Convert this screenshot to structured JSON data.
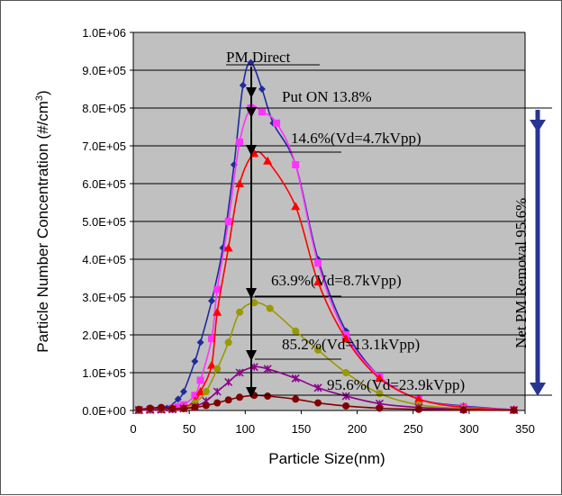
{
  "chart_data": {
    "type": "line",
    "xlabel": "Particle Size(nm)",
    "ylabel_main": "Particle Number Concentration (#/cm",
    "ylabel_sup": "3",
    "ylabel_close": ")",
    "xlim": [
      0,
      350
    ],
    "ylim": [
      0,
      1000000
    ],
    "x_ticks": [
      0,
      50,
      100,
      150,
      200,
      250,
      300,
      350
    ],
    "y_ticks": [
      0,
      100000,
      200000,
      300000,
      400000,
      500000,
      600000,
      700000,
      800000,
      900000,
      1000000
    ],
    "y_tick_labels": [
      "0.0E+00",
      "1.0E+05",
      "2.0E+05",
      "3.0E+05",
      "4.0E+05",
      "5.0E+05",
      "6.0E+05",
      "7.0E+05",
      "8.0E+05",
      "9.0E+05",
      "1.0E+06"
    ],
    "x_tick_labels": [
      "0",
      "50",
      "100",
      "150",
      "200",
      "250",
      "300",
      "350"
    ],
    "background_color": "#c0c0c0",
    "grid": "horizontal",
    "series": [
      {
        "name": "PM Direct",
        "color": "#1f2a9e",
        "marker": "diamond",
        "points": [
          [
            5,
            2000
          ],
          [
            15,
            3000
          ],
          [
            25,
            5000
          ],
          [
            30,
            6000
          ],
          [
            40,
            30000
          ],
          [
            45,
            50000
          ],
          [
            55,
            130000
          ],
          [
            60,
            180000
          ],
          [
            70,
            290000
          ],
          [
            80,
            430000
          ],
          [
            90,
            650000
          ],
          [
            98,
            860000
          ],
          [
            105,
            920000
          ],
          [
            115,
            850000
          ],
          [
            125,
            760000
          ],
          [
            145,
            650000
          ],
          [
            165,
            400000
          ],
          [
            190,
            210000
          ],
          [
            220,
            90000
          ],
          [
            255,
            30000
          ],
          [
            295,
            12000
          ],
          [
            340,
            2000
          ]
        ]
      },
      {
        "name": "Put ON",
        "color": "#ff33ff",
        "marker": "square",
        "points": [
          [
            5,
            1000
          ],
          [
            15,
            2000
          ],
          [
            25,
            4000
          ],
          [
            35,
            6000
          ],
          [
            40,
            10000
          ],
          [
            45,
            15000
          ],
          [
            55,
            40000
          ],
          [
            60,
            80000
          ],
          [
            70,
            190000
          ],
          [
            75,
            320000
          ],
          [
            85,
            500000
          ],
          [
            95,
            710000
          ],
          [
            105,
            800000
          ],
          [
            115,
            790000
          ],
          [
            128,
            760000
          ],
          [
            145,
            650000
          ],
          [
            165,
            390000
          ],
          [
            190,
            200000
          ],
          [
            220,
            90000
          ],
          [
            255,
            30000
          ],
          [
            295,
            10000
          ],
          [
            340,
            2000
          ]
        ]
      },
      {
        "name": "Vd=4.7kVpp",
        "color": "#ff0000",
        "marker": "triangle",
        "points": [
          [
            5,
            1000
          ],
          [
            15,
            2000
          ],
          [
            25,
            3000
          ],
          [
            35,
            5000
          ],
          [
            45,
            8000
          ],
          [
            55,
            25000
          ],
          [
            60,
            50000
          ],
          [
            70,
            120000
          ],
          [
            75,
            260000
          ],
          [
            85,
            430000
          ],
          [
            95,
            600000
          ],
          [
            108,
            680000
          ],
          [
            120,
            660000
          ],
          [
            145,
            540000
          ],
          [
            165,
            340000
          ],
          [
            190,
            190000
          ],
          [
            220,
            85000
          ],
          [
            255,
            30000
          ],
          [
            295,
            8000
          ],
          [
            340,
            2000
          ]
        ]
      },
      {
        "name": "Vd=8.7kVpp",
        "color": "#999900",
        "marker": "circle",
        "points": [
          [
            5,
            1000
          ],
          [
            15,
            1500
          ],
          [
            25,
            2000
          ],
          [
            35,
            3000
          ],
          [
            45,
            6000
          ],
          [
            55,
            20000
          ],
          [
            65,
            50000
          ],
          [
            75,
            110000
          ],
          [
            85,
            180000
          ],
          [
            95,
            260000
          ],
          [
            108,
            285000
          ],
          [
            122,
            270000
          ],
          [
            145,
            210000
          ],
          [
            165,
            160000
          ],
          [
            190,
            100000
          ],
          [
            220,
            45000
          ],
          [
            255,
            15000
          ],
          [
            295,
            5000
          ],
          [
            340,
            1000
          ]
        ]
      },
      {
        "name": "Vd=13.1kVpp",
        "color": "#8b008b",
        "marker": "star",
        "points": [
          [
            5,
            1000
          ],
          [
            15,
            1500
          ],
          [
            25,
            2000
          ],
          [
            35,
            3000
          ],
          [
            45,
            5000
          ],
          [
            55,
            10000
          ],
          [
            65,
            25000
          ],
          [
            75,
            50000
          ],
          [
            85,
            75000
          ],
          [
            95,
            100000
          ],
          [
            108,
            115000
          ],
          [
            120,
            110000
          ],
          [
            145,
            85000
          ],
          [
            165,
            60000
          ],
          [
            190,
            38000
          ],
          [
            220,
            18000
          ],
          [
            255,
            8000
          ],
          [
            295,
            3000
          ],
          [
            340,
            1000
          ]
        ]
      },
      {
        "name": "Vd=23.9kVpp",
        "color": "#800000",
        "marker": "circle",
        "points": [
          [
            5,
            3000
          ],
          [
            15,
            6000
          ],
          [
            25,
            8000
          ],
          [
            35,
            5000
          ],
          [
            45,
            5000
          ],
          [
            55,
            8000
          ],
          [
            65,
            13000
          ],
          [
            75,
            20000
          ],
          [
            85,
            28000
          ],
          [
            95,
            35000
          ],
          [
            108,
            40000
          ],
          [
            120,
            38000
          ],
          [
            145,
            30000
          ],
          [
            165,
            20000
          ],
          [
            190,
            12000
          ],
          [
            220,
            6000
          ],
          [
            255,
            3000
          ],
          [
            295,
            1000
          ],
          [
            340,
            500
          ]
        ]
      }
    ],
    "annotations": {
      "pm_direct": "PM Direct",
      "put_on": "Put ON 13.8%",
      "v47": "14.6%(Vd=4.7kVpp)",
      "v87": "63.9%(Vd=8.7kVpp)",
      "v131": "85.2%(Vd=13.1kVpp)",
      "v239": "95.6%(Vd=23.9kVpp)",
      "net_removal": "Net PM Removal  95.6%"
    }
  }
}
